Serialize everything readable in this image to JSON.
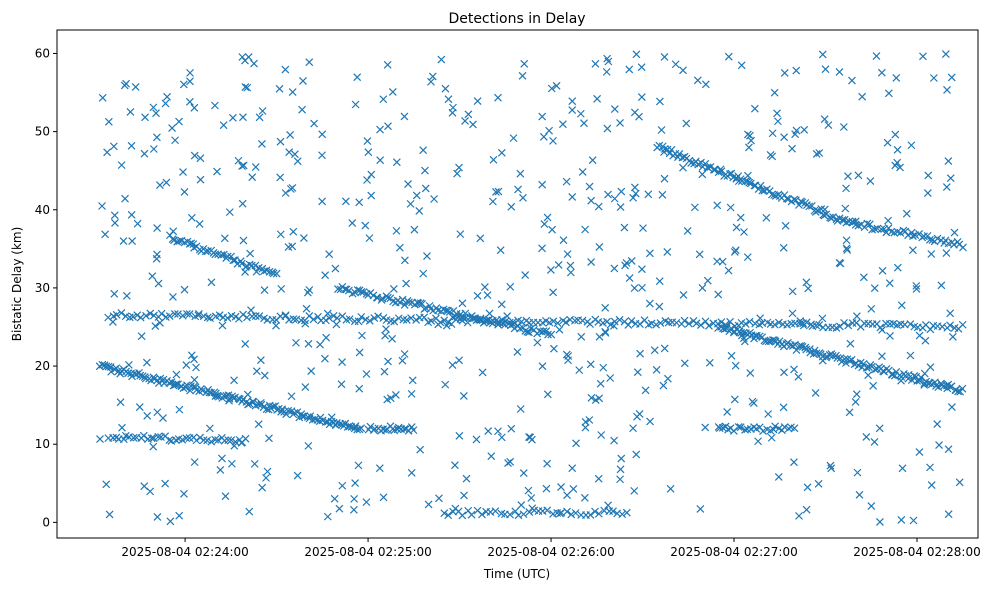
{
  "chart_data": {
    "type": "scatter",
    "title": "Detections in Delay",
    "xlabel": "Time (UTC)",
    "ylabel": "Bistatic Delay (km)",
    "marker": "x",
    "color": "#1f77b4",
    "grid": false,
    "xlim": [
      "2025-08-04 02:23:18",
      "2025-08-04 02:28:20"
    ],
    "ylim": [
      -2,
      63
    ],
    "xticks": [
      "2025-08-04 02:24:00",
      "2025-08-04 02:25:00",
      "2025-08-04 02:26:00",
      "2025-08-04 02:27:00",
      "2025-08-04 02:28:00"
    ],
    "yticks": [
      0,
      10,
      20,
      30,
      40,
      50,
      60
    ],
    "tracks": [
      {
        "start": [
          "2025-08-04 02:23:32",
          20.0
        ],
        "end": [
          "2025-08-04 02:24:58",
          11.8
        ],
        "count": 130
      },
      {
        "start": [
          "2025-08-04 02:23:55",
          36.5
        ],
        "end": [
          "2025-08-04 02:24:30",
          31.5
        ],
        "count": 45
      },
      {
        "start": [
          "2025-08-04 02:24:50",
          30.0
        ],
        "end": [
          "2025-08-04 02:26:00",
          24.0
        ],
        "count": 90
      },
      {
        "start": [
          "2025-08-04 02:26:35",
          48.0
        ],
        "end": [
          "2025-08-04 02:27:40",
          38.0
        ],
        "count": 90
      },
      {
        "start": [
          "2025-08-04 02:27:40",
          38.2
        ],
        "end": [
          "2025-08-04 02:28:15",
          35.5
        ],
        "count": 40
      },
      {
        "start": [
          "2025-08-04 02:26:55",
          25.0
        ],
        "end": [
          "2025-08-04 02:28:15",
          16.8
        ],
        "count": 120
      },
      {
        "start": [
          "2025-08-04 02:23:35",
          26.5
        ],
        "end": [
          "2025-08-04 02:28:15",
          25.0
        ],
        "count": 210
      },
      {
        "start": [
          "2025-08-04 02:25:25",
          1.2
        ],
        "end": [
          "2025-08-04 02:26:25",
          1.2
        ],
        "count": 40
      },
      {
        "start": [
          "2025-08-04 02:23:35",
          11.0
        ],
        "end": [
          "2025-08-04 02:24:20",
          10.5
        ],
        "count": 40
      },
      {
        "start": [
          "2025-08-04 02:25:00",
          12.0
        ],
        "end": [
          "2025-08-04 02:25:15",
          12.0
        ],
        "count": 20
      },
      {
        "start": [
          "2025-08-04 02:26:55",
          12.0
        ],
        "end": [
          "2025-08-04 02:27:20",
          12.0
        ],
        "count": 25
      }
    ],
    "clutter_count": 650
  }
}
